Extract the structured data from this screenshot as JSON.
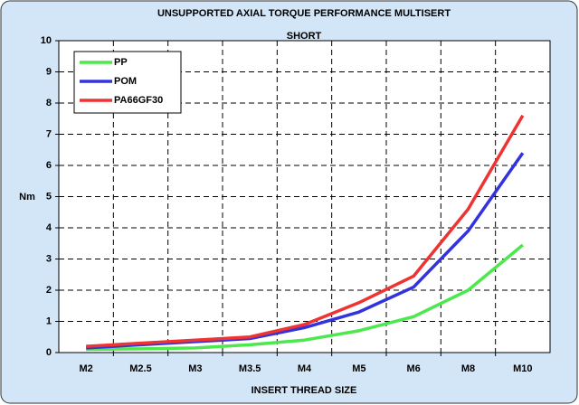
{
  "chart_data": {
    "type": "line",
    "title": [
      "UNSUPPORTED AXIAL TORQUE PERFORMANCE MULTISERT",
      "SHORT"
    ],
    "x_label": "INSERT THREAD SIZE",
    "y_label": "Nm",
    "categories": [
      "M2",
      "M2.5",
      "M3",
      "M3.5",
      "M4",
      "M5",
      "M6",
      "M8",
      "M10"
    ],
    "series": [
      {
        "name": "PP",
        "color": "#4de84d",
        "values": [
          0.1,
          0.12,
          0.15,
          0.25,
          0.4,
          0.7,
          1.15,
          2.0,
          3.45
        ]
      },
      {
        "name": "POM",
        "color": "#3333dd",
        "values": [
          0.15,
          0.25,
          0.35,
          0.45,
          0.8,
          1.3,
          2.1,
          3.9,
          6.4
        ]
      },
      {
        "name": "PA66GF30",
        "color": "#ee3333",
        "values": [
          0.2,
          0.3,
          0.4,
          0.5,
          0.9,
          1.6,
          2.45,
          4.6,
          7.6
        ]
      }
    ],
    "ylim": [
      0,
      10
    ],
    "yticks": [
      0,
      1,
      2,
      3,
      4,
      5,
      6,
      7,
      8,
      9,
      10
    ],
    "grid": true,
    "legend": "upper left"
  }
}
